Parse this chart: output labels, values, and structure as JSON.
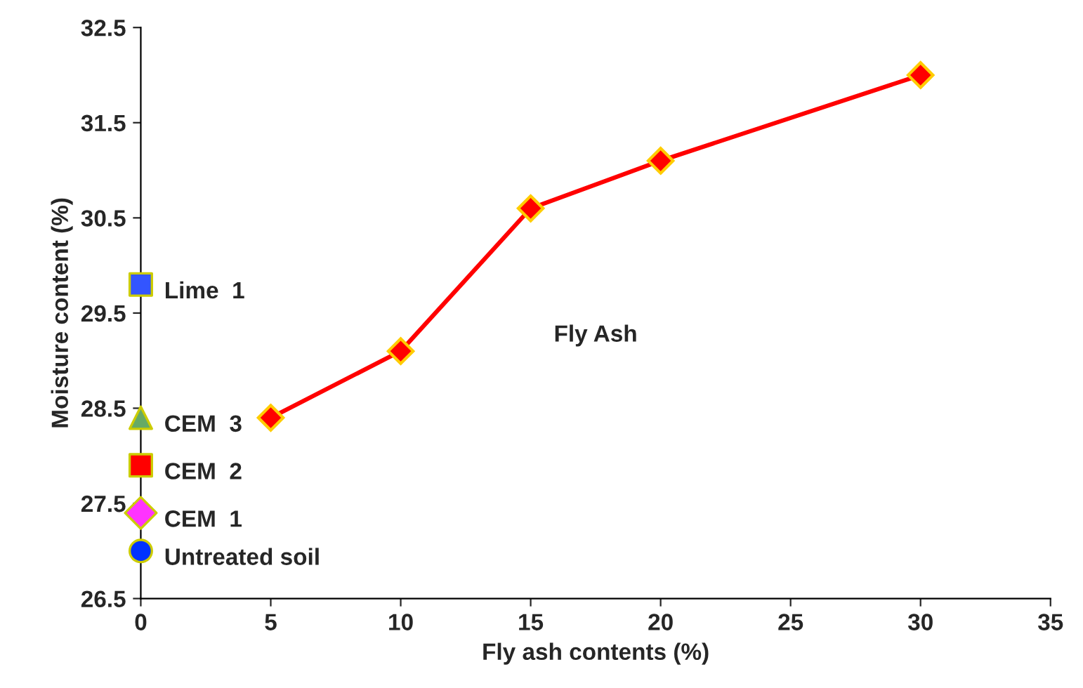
{
  "chart_data": {
    "type": "line",
    "xlabel": "Fly ash contents (%)",
    "ylabel": "Moisture content (%)",
    "xlim": [
      0,
      35
    ],
    "xticks": [
      0,
      5,
      10,
      15,
      20,
      25,
      30,
      35
    ],
    "ylim": [
      26.5,
      32.5
    ],
    "yticks": [
      26.5,
      27.5,
      28.5,
      29.5,
      30.5,
      31.5,
      32.5
    ],
    "grid": false,
    "legend": false,
    "annotations": [
      "Fly Ash"
    ],
    "series": [
      {
        "color": "#ff0000",
        "marker": "diamond",
        "x": [
          5,
          10,
          15,
          20,
          30
        ],
        "values": [
          28.4,
          29.1,
          30.6,
          31.1,
          32.0
        ]
      },
      {
        "type": "scatter",
        "name": "Lime  1",
        "color": "#3355ff",
        "marker": "square",
        "x": [
          0
        ],
        "values": [
          29.8
        ]
      },
      {
        "type": "scatter",
        "name": "CEM  3",
        "color": "#66aa66",
        "marker": "triangle",
        "x": [
          0
        ],
        "values": [
          28.4
        ]
      },
      {
        "type": "scatter",
        "name": "CEM  2",
        "color": "#ff0000",
        "marker": "square",
        "x": [
          0
        ],
        "values": [
          27.9
        ]
      },
      {
        "type": "scatter",
        "name": "CEM  1",
        "color": "#ff33ff",
        "marker": "diamond",
        "x": [
          0
        ],
        "values": [
          27.4
        ]
      },
      {
        "type": "scatter",
        "name": "Untreated soil",
        "color": "#0033ff",
        "marker": "circle",
        "x": [
          0
        ],
        "values": [
          27.0
        ]
      }
    ]
  }
}
